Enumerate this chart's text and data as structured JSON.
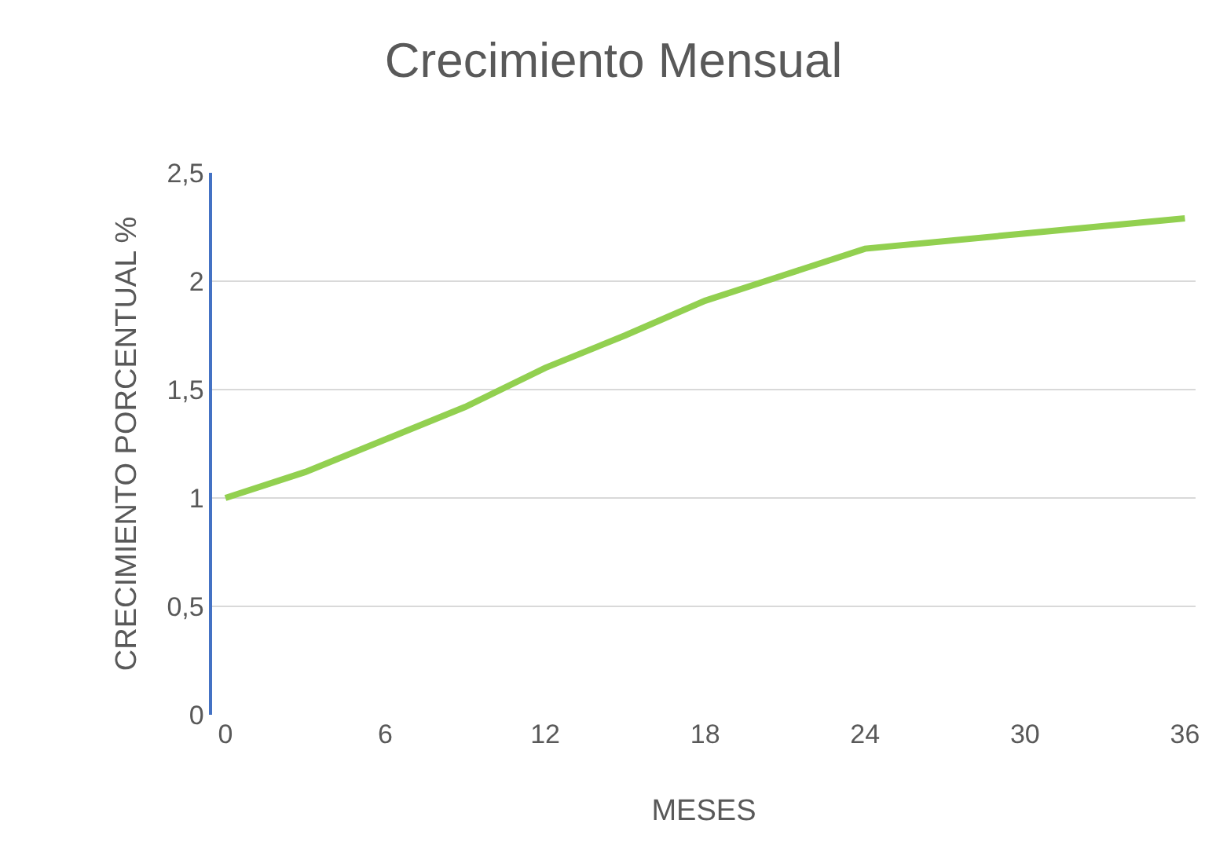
{
  "chart_data": {
    "type": "line",
    "title": "Crecimiento Mensual",
    "xlabel": "MESES",
    "ylabel": "CRECIMIENTO PORCENTUAL %",
    "x": [
      0,
      3,
      6,
      9,
      12,
      15,
      18,
      21,
      24,
      30,
      36
    ],
    "series": [
      {
        "color": "#92d050",
        "values": [
          1.0,
          1.12,
          1.27,
          1.42,
          1.6,
          1.75,
          1.91,
          2.03,
          2.15,
          2.22,
          2.29
        ]
      }
    ],
    "xlim": [
      -0.5,
      36.4
    ],
    "xticks": [
      0,
      6,
      12,
      18,
      24,
      30,
      36
    ],
    "ylim": [
      0,
      2.5
    ],
    "yticks": [
      0,
      {
        "value": 0.5,
        "label": "0,5"
      },
      1,
      {
        "value": 1.5,
        "label": "1,5"
      },
      2,
      {
        "value": 2.5,
        "label": "2,5"
      }
    ],
    "grid": "y",
    "marker": "none",
    "line_style": "solid"
  }
}
